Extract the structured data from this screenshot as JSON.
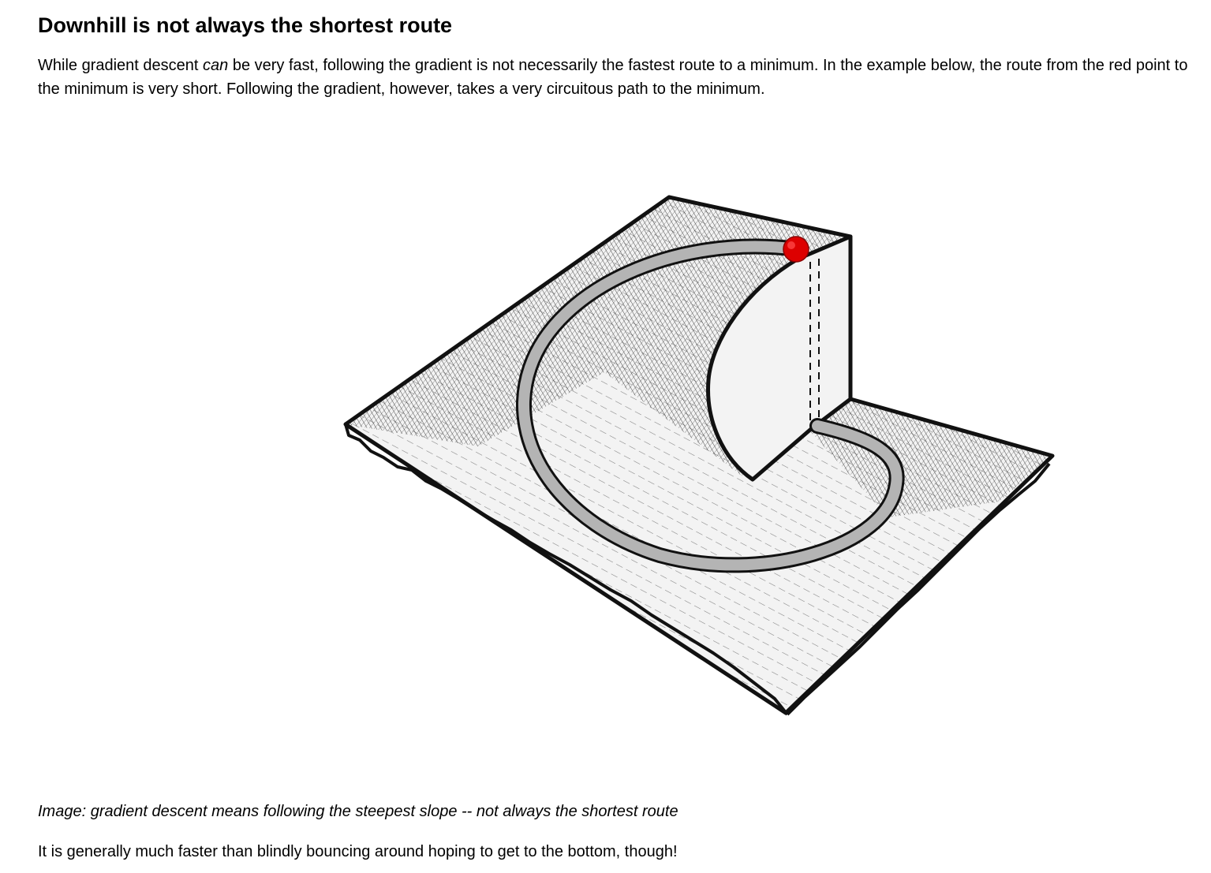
{
  "article": {
    "title": "Downhill is not always the shortest route",
    "intro": {
      "part1": "While gradient descent ",
      "emphasis": "can",
      "part2": " be very fast, following the gradient is not necessarily the fastest route to a minimum. In the example below, the route from the red point to the minimum is very short. Following the gradient, however, takes a very circuitous path to the minimum."
    },
    "figure": {
      "subject": "hand-drawn hatched surface with a steep cliff, a red start point on the upper ledge, and a grey curved path looping down to the minimum at the base of the cliff",
      "colors": {
        "start_point": "#dd0000",
        "path_fill": "#b4b4b4",
        "ink": "#111111",
        "paper": "#f3f3f3"
      }
    },
    "caption": "Image: gradient descent means following the steepest slope -- not always the shortest route",
    "closing": "It is generally much faster than blindly bouncing around hoping to get to the bottom, though!"
  }
}
